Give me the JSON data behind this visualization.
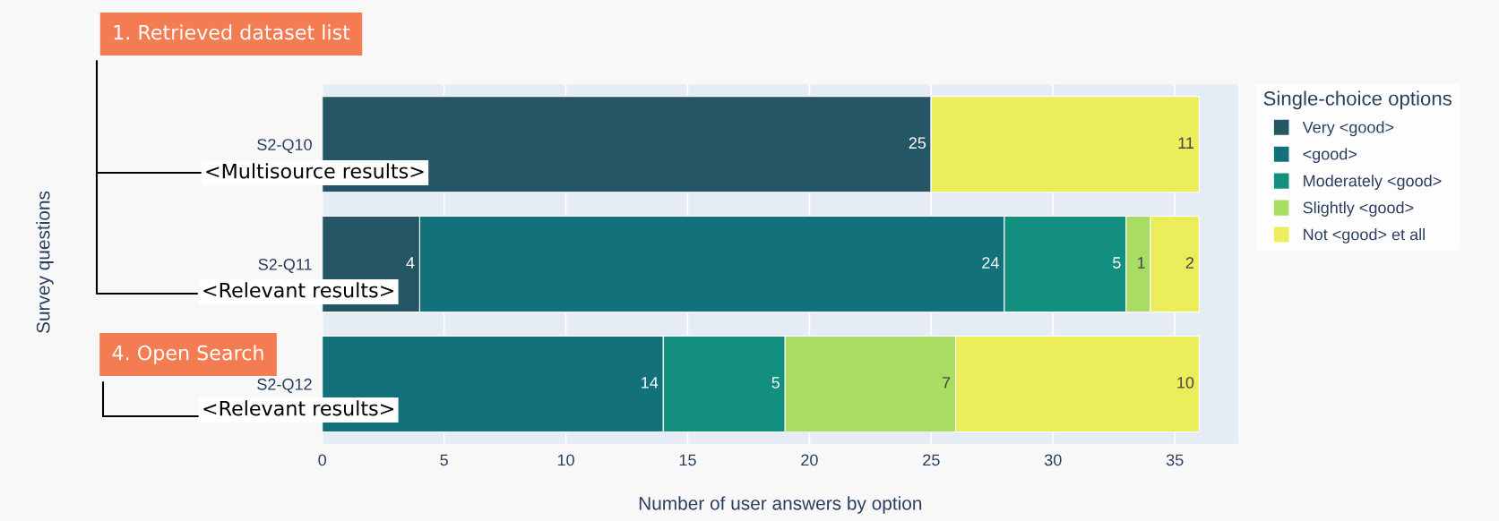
{
  "chart_data": {
    "type": "bar",
    "orientation": "horizontal",
    "stacked": true,
    "categories": [
      "S2-Q10",
      "S2-Q11",
      "S2-Q12"
    ],
    "series": [
      {
        "name": "Very <good>",
        "color": "#255665",
        "values": [
          25,
          4,
          0
        ],
        "value_labels": [
          "25",
          "4",
          null
        ]
      },
      {
        "name": "<good>",
        "color": "#12717a",
        "values": [
          0,
          24,
          14
        ],
        "value_labels": [
          null,
          "24",
          "14"
        ]
      },
      {
        "name": "Moderately <good>",
        "color": "#138f80",
        "values": [
          0,
          5,
          5
        ],
        "value_labels": [
          null,
          "5",
          "5"
        ]
      },
      {
        "name": "Slightly <good>",
        "color": "#a9dc62",
        "values": [
          0,
          1,
          7
        ],
        "value_labels": [
          null,
          "1",
          "7"
        ]
      },
      {
        "name": "Not <good> et all",
        "color": "#ebee5a",
        "values": [
          11,
          2,
          10
        ],
        "value_labels": [
          "11",
          "2",
          "10"
        ]
      }
    ],
    "xlabel": "Number of user answers by option",
    "legend_title": "Single-choice options",
    "xlim": [
      0,
      37.6
    ],
    "xticks": [
      0,
      5,
      10,
      15,
      20,
      25,
      30,
      35
    ],
    "grid": "x",
    "legend": "right",
    "annotations": [
      "1. Retrieved dataset list",
      "<Multisource results>",
      "<Relevant results>",
      "4. Open Search",
      "<Relevant results>",
      "Survey questions"
    ]
  }
}
